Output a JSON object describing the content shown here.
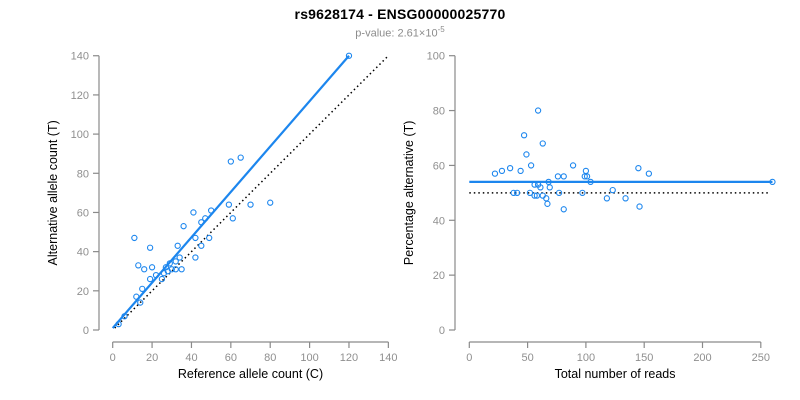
{
  "header": {
    "title": "rs9628174 - ENSG00000025770",
    "subtitle_base": "p-value: 2.61×10",
    "subtitle_exponent": "-5"
  },
  "colors": {
    "accent_blue": "#1C86EE",
    "dotted_black": "#000000",
    "axis_gray": "#8a8a8a",
    "tick_label_gray": "#8f8f8f",
    "axis_title_black": "#000000",
    "background": "#ffffff"
  },
  "chart_data": [
    {
      "type": "scatter",
      "name": "allele-counts-scatter",
      "xlabel": "Reference allele count (C)",
      "ylabel": "Alternative allele count (T)",
      "xlim": [
        0,
        140
      ],
      "ylim": [
        0,
        140
      ],
      "xticks": [
        0,
        20,
        40,
        60,
        80,
        100,
        120,
        140
      ],
      "yticks": [
        0,
        20,
        40,
        60,
        80,
        100,
        120,
        140
      ],
      "grid": false,
      "legend": null,
      "points": [
        [
          3,
          3
        ],
        [
          6,
          7
        ],
        [
          12,
          17
        ],
        [
          14,
          14
        ],
        [
          15,
          21
        ],
        [
          11,
          47
        ],
        [
          13,
          33
        ],
        [
          16,
          31
        ],
        [
          19,
          42
        ],
        [
          20,
          32
        ],
        [
          19,
          26
        ],
        [
          22,
          28
        ],
        [
          25,
          26
        ],
        [
          26,
          29
        ],
        [
          27,
          32
        ],
        [
          28,
          30
        ],
        [
          29,
          34
        ],
        [
          30,
          31
        ],
        [
          32,
          31
        ],
        [
          32,
          35
        ],
        [
          34,
          37
        ],
        [
          33,
          43
        ],
        [
          35,
          31
        ],
        [
          36,
          53
        ],
        [
          41,
          60
        ],
        [
          42,
          37
        ],
        [
          42,
          47
        ],
        [
          45,
          55
        ],
        [
          45,
          43
        ],
        [
          47,
          57
        ],
        [
          49,
          47
        ],
        [
          50,
          61
        ],
        [
          59,
          64
        ],
        [
          61,
          57
        ],
        [
          60,
          86
        ],
        [
          65,
          88
        ],
        [
          70,
          64
        ],
        [
          80,
          65
        ],
        [
          120,
          140
        ]
      ],
      "lines": [
        {
          "name": "identity-line",
          "style": "dotted",
          "color": "#000000",
          "from": [
            1,
            1
          ],
          "to": [
            140,
            140
          ]
        },
        {
          "name": "fit-line",
          "style": "solid",
          "color": "#1C86EE",
          "from": [
            0,
            1
          ],
          "to": [
            120,
            140
          ]
        }
      ]
    },
    {
      "type": "scatter",
      "name": "percentage-vs-coverage-scatter",
      "xlabel": "Total number of reads",
      "ylabel": "Percentage alternative (T)",
      "xlim": [
        0,
        250
      ],
      "ylim": [
        0,
        100
      ],
      "xticks": [
        0,
        50,
        100,
        150,
        200,
        250
      ],
      "yticks": [
        0,
        20,
        40,
        60,
        80,
        100
      ],
      "grid": false,
      "legend": null,
      "points": [
        [
          22,
          57
        ],
        [
          28,
          58
        ],
        [
          35,
          59
        ],
        [
          38,
          50
        ],
        [
          41,
          50
        ],
        [
          44,
          58
        ],
        [
          47,
          71
        ],
        [
          49,
          64
        ],
        [
          52,
          50
        ],
        [
          53,
          60
        ],
        [
          56,
          53
        ],
        [
          56,
          49
        ],
        [
          58,
          49
        ],
        [
          59,
          80
        ],
        [
          59,
          53
        ],
        [
          61,
          52
        ],
        [
          63,
          68
        ],
        [
          63,
          49
        ],
        [
          66,
          48
        ],
        [
          67,
          46
        ],
        [
          68,
          54
        ],
        [
          69,
          52
        ],
        [
          76,
          56
        ],
        [
          77,
          50
        ],
        [
          81,
          56
        ],
        [
          81,
          44
        ],
        [
          89,
          60
        ],
        [
          97,
          50
        ],
        [
          99,
          56
        ],
        [
          100,
          58
        ],
        [
          101,
          56
        ],
        [
          104,
          54
        ],
        [
          118,
          48
        ],
        [
          123,
          51
        ],
        [
          134,
          48
        ],
        [
          145,
          59
        ],
        [
          146,
          45
        ],
        [
          154,
          57
        ],
        [
          260,
          54
        ]
      ],
      "lines": [
        {
          "name": "null-50pct-line",
          "style": "dotted",
          "color": "#000000",
          "from": [
            0,
            50
          ],
          "to": [
            258,
            50
          ]
        },
        {
          "name": "fit-line",
          "style": "solid",
          "color": "#1C86EE",
          "from": [
            0,
            54
          ],
          "to": [
            260,
            54
          ]
        }
      ]
    }
  ]
}
